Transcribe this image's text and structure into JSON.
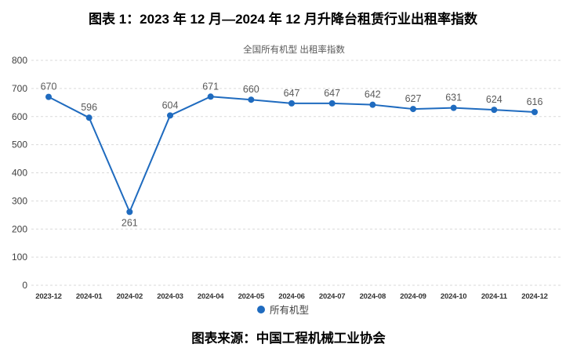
{
  "figure": {
    "title": "图表 1：2023 年 12 月—2024 年 12 月升降台租赁行业出租率指数",
    "source": "图表来源：中国工程机械工业协会"
  },
  "colors": {
    "accent": "#1F6BBF",
    "grid": "#D9D9D9",
    "value_label": "#595959",
    "y_tick": "#404040",
    "x_tick": "#333333",
    "subtitle": "#595959",
    "title_text": "#000000"
  },
  "chart_data": {
    "type": "line",
    "title": "全国所有机型 出租率指数",
    "categories": [
      "2023-12",
      "2024-01",
      "2024-02",
      "2024-03",
      "2024-04",
      "2024-05",
      "2024-06",
      "2024-07",
      "2024-08",
      "2024-09",
      "2024-10",
      "2024-11",
      "2024-12"
    ],
    "series": [
      {
        "name": "所有机型",
        "values": [
          670,
          596,
          261,
          604,
          671,
          660,
          647,
          647,
          642,
          627,
          631,
          624,
          616
        ]
      }
    ],
    "xlabel": "",
    "ylabel": "",
    "ylim": [
      0,
      800
    ],
    "ytick_step": 100,
    "grid": true,
    "grid_style": "dashed",
    "legend_position": "bottom",
    "data_labels": true
  }
}
